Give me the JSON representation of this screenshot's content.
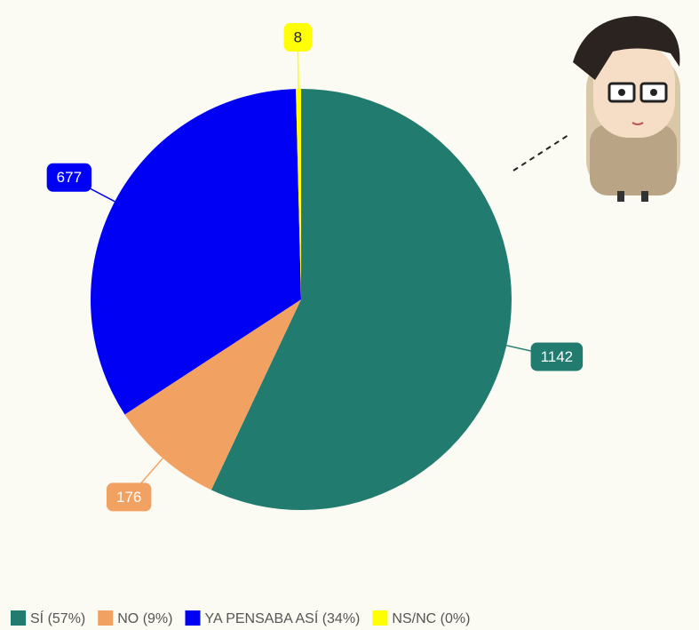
{
  "chart_data": {
    "type": "pie",
    "categories": [
      "SÍ (57%)",
      "NO (9%)",
      "YA PENSABA ASÍ (34%)",
      "NS/NC (0%)"
    ],
    "values": [
      1142,
      176,
      677,
      8
    ],
    "colors": [
      "#217b6f",
      "#f1a262",
      "#0000f5",
      "#ffff00"
    ],
    "legend": "bottom-left"
  }
}
